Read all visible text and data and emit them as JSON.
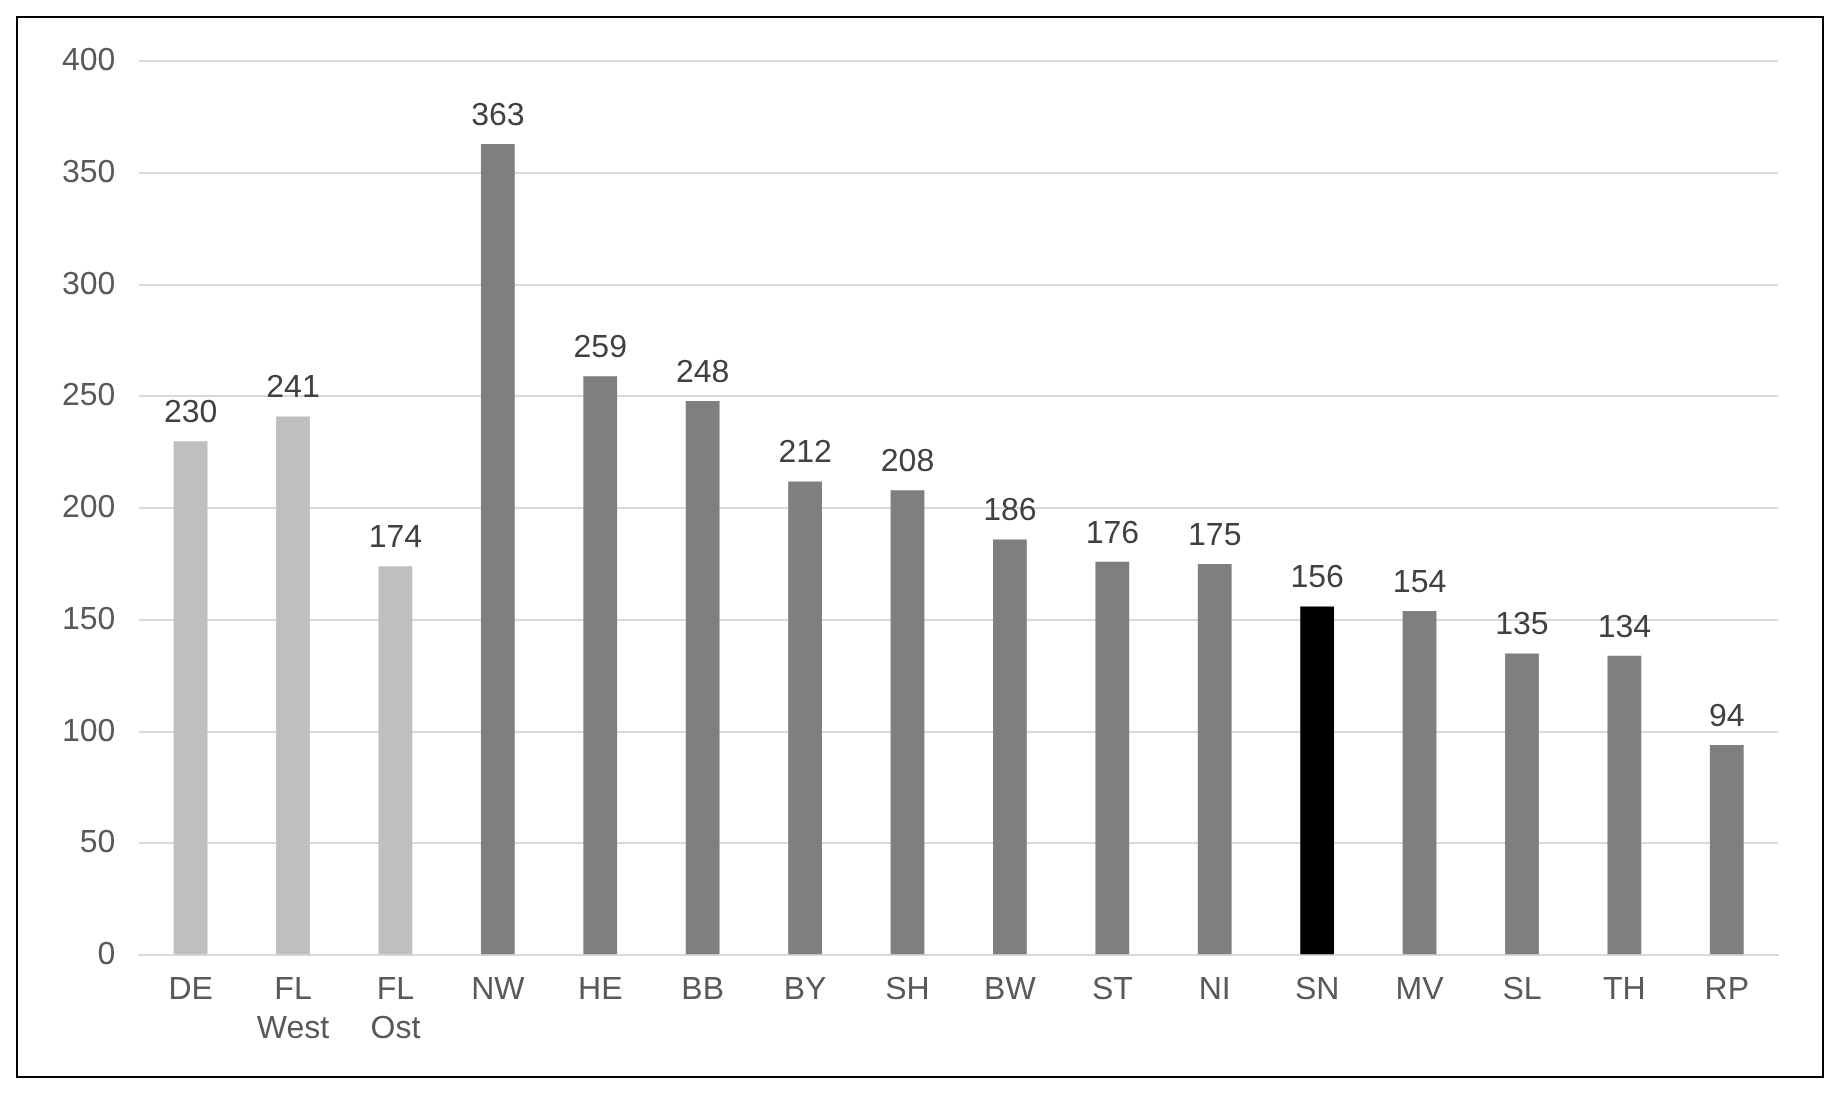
{
  "chart_data": {
    "type": "bar",
    "categories": [
      "DE",
      "FL West",
      "FL Ost",
      "NW",
      "HE",
      "BB",
      "BY",
      "SH",
      "BW",
      "ST",
      "NI",
      "SN",
      "MV",
      "SL",
      "TH",
      "RP"
    ],
    "values": [
      230,
      241,
      174,
      363,
      259,
      248,
      212,
      208,
      186,
      176,
      175,
      156,
      154,
      135,
      134,
      94
    ],
    "colors": [
      "#bfbfbf",
      "#bfbfbf",
      "#bfbfbf",
      "#7f7f7f",
      "#7f7f7f",
      "#7f7f7f",
      "#7f7f7f",
      "#7f7f7f",
      "#7f7f7f",
      "#7f7f7f",
      "#7f7f7f",
      "#000000",
      "#7f7f7f",
      "#7f7f7f",
      "#7f7f7f",
      "#7f7f7f"
    ],
    "ylim": [
      0,
      400
    ],
    "yticks": [
      0,
      50,
      100,
      150,
      200,
      250,
      300,
      350,
      400
    ],
    "grid": "y",
    "data_labels": true,
    "legend": false
  }
}
